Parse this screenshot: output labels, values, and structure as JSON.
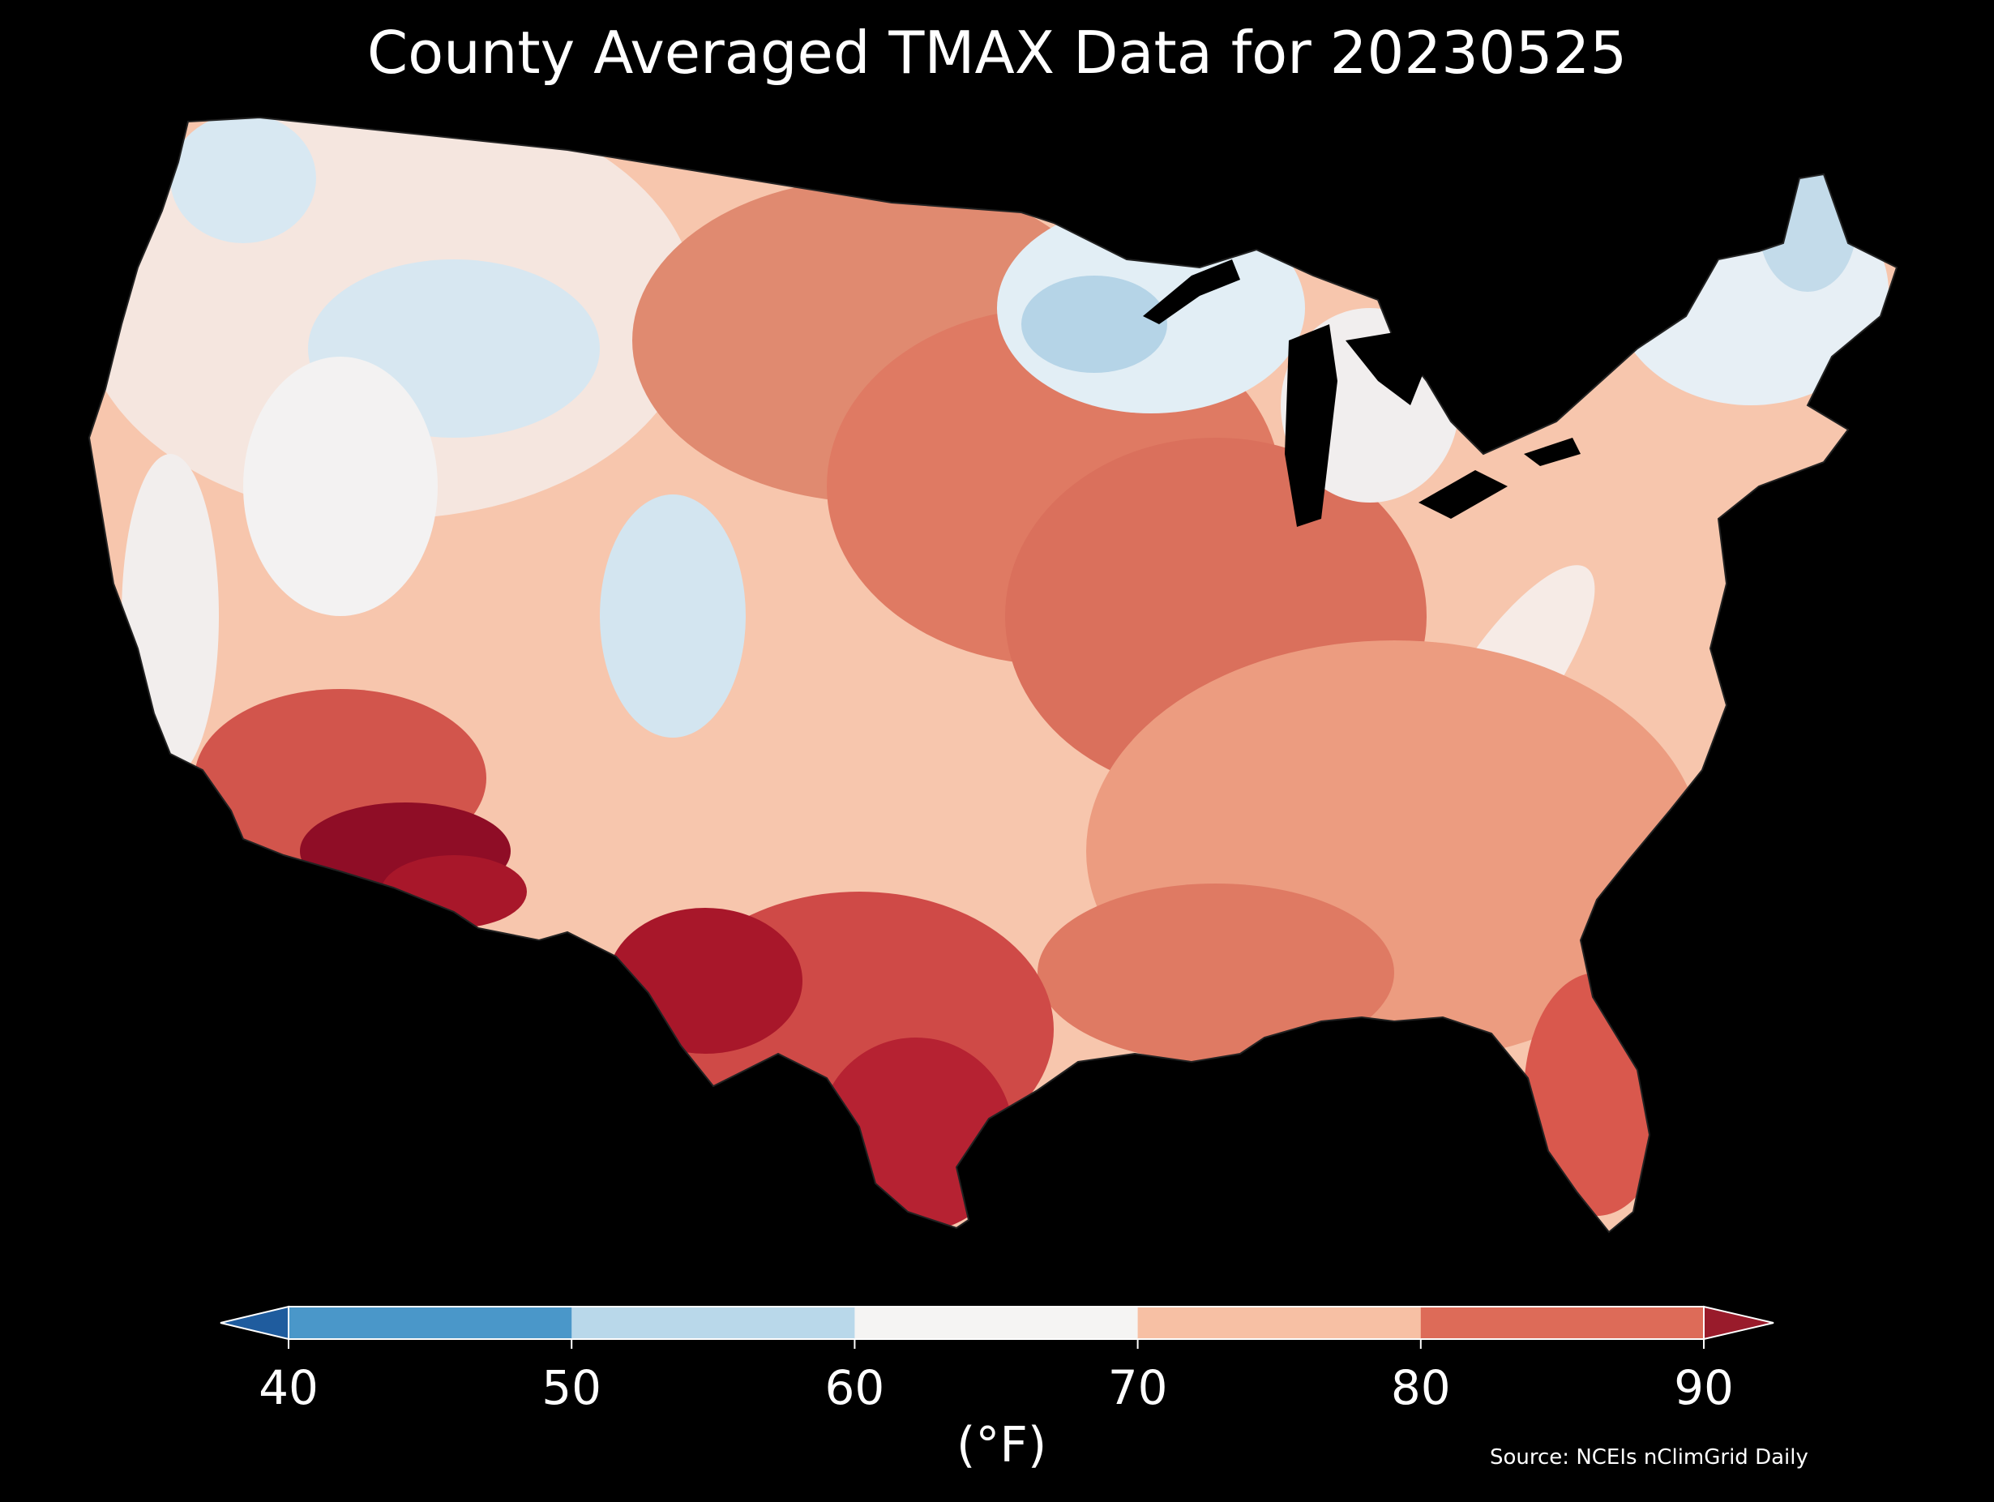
{
  "title": "County Averaged TMAX Data for 20230525",
  "source": "Source: NCEIs nClimGrid Daily",
  "colorbar": {
    "unit": "(°F)",
    "ticks": [
      "40",
      "50",
      "60",
      "70",
      "80",
      "90"
    ],
    "extend": "both",
    "bins": [
      {
        "range": "<40",
        "color": "#1f5c9e"
      },
      {
        "range": "40-50",
        "color": "#4a97c9"
      },
      {
        "range": "50-60",
        "color": "#b9d8ea"
      },
      {
        "range": "60-70",
        "color": "#f5f4f3"
      },
      {
        "range": "70-80",
        "color": "#f7c0a4"
      },
      {
        "range": "80-90",
        "color": "#dd6b58"
      },
      {
        "range": ">90",
        "color": "#991b2b"
      }
    ]
  },
  "map": {
    "background": "#000000",
    "region": "Contiguous United States",
    "units": "°F"
  }
}
